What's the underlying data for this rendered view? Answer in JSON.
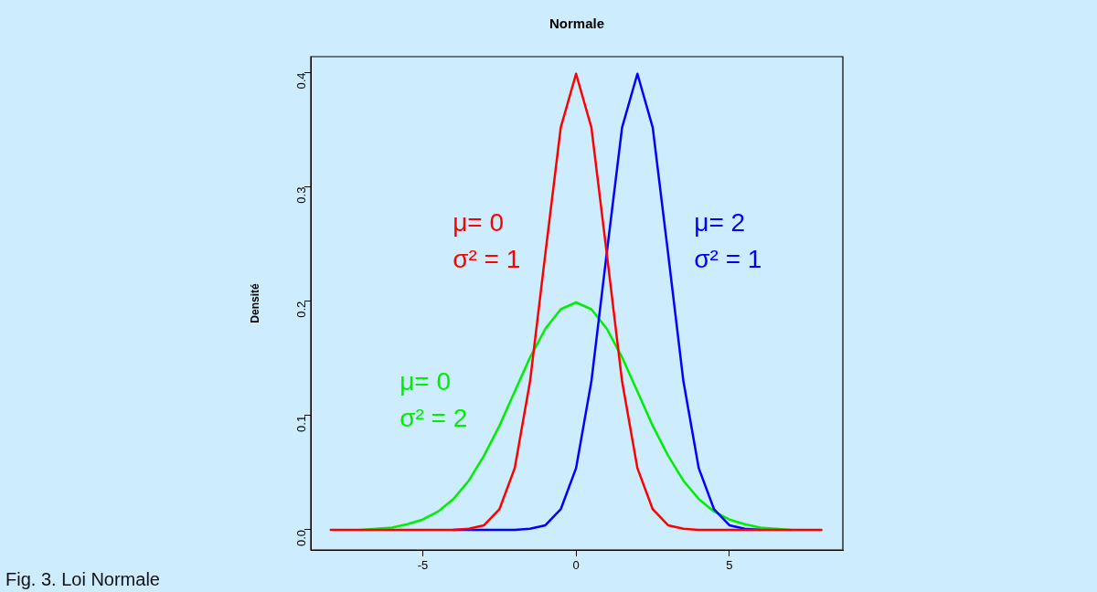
{
  "chart_data": {
    "type": "line",
    "title": "Normale",
    "ylabel": "Densité",
    "annotations": [
      "Fig. 3. Loi Normale"
    ],
    "x": [
      -8,
      -7.5,
      -7,
      -6.5,
      -6,
      -5.5,
      -5,
      -4.5,
      -4,
      -3.5,
      -3,
      -2.5,
      -2,
      -1.5,
      -1,
      -0.5,
      0,
      0.5,
      1,
      1.5,
      2,
      2.5,
      3,
      3.5,
      4,
      4.5,
      5,
      5.5,
      6,
      6.5,
      7,
      7.5,
      8
    ],
    "series": [
      {
        "name": "μ= 0\nσ² = 1",
        "color": "#ff0000",
        "values": [
          0,
          0,
          0,
          0,
          0,
          0,
          0,
          0,
          0,
          0.001,
          0.004,
          0.018,
          0.054,
          0.13,
          0.242,
          0.352,
          0.399,
          0.352,
          0.242,
          0.13,
          0.054,
          0.018,
          0.004,
          0.001,
          0,
          0,
          0,
          0,
          0,
          0,
          0,
          0,
          0
        ]
      },
      {
        "name": "μ= 2\nσ² = 1",
        "color": "#0000ff",
        "values": [
          null,
          null,
          null,
          null,
          null,
          null,
          null,
          null,
          0,
          0,
          0,
          0,
          0,
          0.001,
          0.004,
          0.018,
          0.054,
          0.13,
          0.242,
          0.352,
          0.399,
          0.352,
          0.242,
          0.13,
          0.054,
          0.018,
          0.004,
          0.001,
          0,
          null,
          null,
          null,
          null
        ]
      },
      {
        "name": "μ= 0\nσ² = 2",
        "color": "#00ee00",
        "values": [
          null,
          null,
          0,
          0.001,
          0.002,
          0.005,
          0.009,
          0.016,
          0.027,
          0.043,
          0.065,
          0.091,
          0.121,
          0.151,
          0.176,
          0.193,
          0.199,
          0.193,
          0.176,
          0.151,
          0.121,
          0.091,
          0.065,
          0.043,
          0.027,
          0.016,
          0.009,
          0.005,
          0.002,
          0.001,
          0,
          null,
          null
        ]
      }
    ],
    "xlim": [
      -8.65,
      8.7
    ],
    "xticks": [
      -5,
      0,
      5
    ],
    "ylim": [
      -0.0176,
      0.414
    ],
    "yticks": [
      {
        "value": 0,
        "label": "0.0"
      },
      0.1,
      0.2,
      0.3,
      0.4
    ],
    "grid": false,
    "legend": false,
    "marker": "none",
    "line_style": "solid"
  }
}
